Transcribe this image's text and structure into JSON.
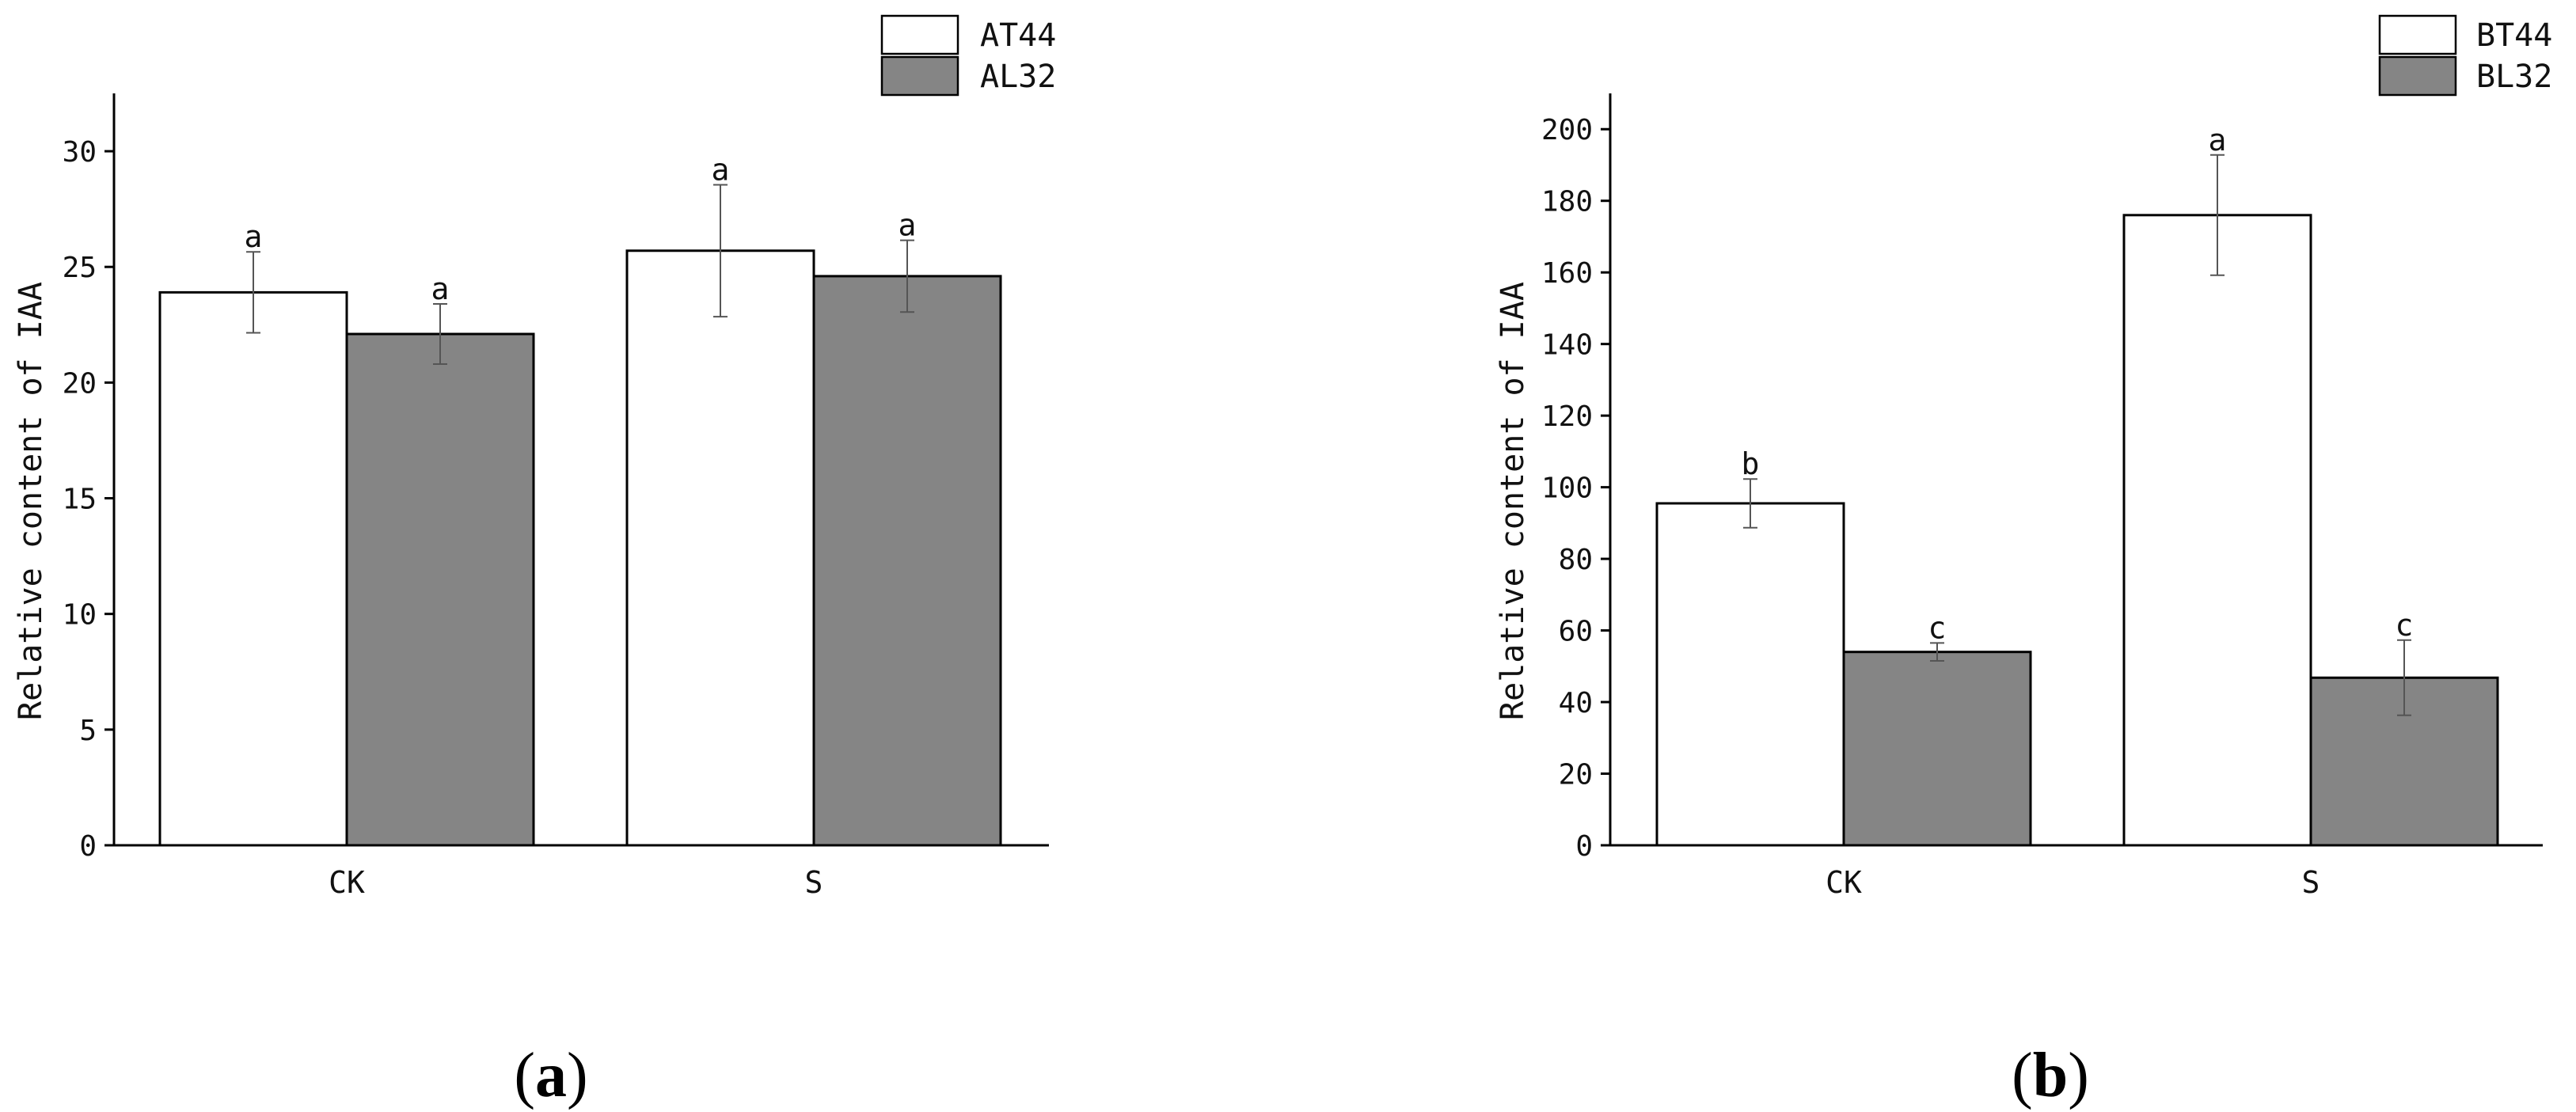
{
  "colors": {
    "series1": "#ffffff",
    "series2": "#858585",
    "axis": "#000000",
    "errorbar": "#555555"
  },
  "chart_data": [
    {
      "type": "bar",
      "panel_label": "a",
      "ylabel": "Relative content of IAA",
      "ylim": [
        0,
        32.5
      ],
      "yticks": [
        0,
        5,
        10,
        15,
        20,
        25,
        30
      ],
      "categories": [
        "CK",
        "S"
      ],
      "legend_position": "top-right",
      "series": [
        {
          "name": "AT44",
          "values": [
            23.9,
            25.7
          ],
          "errors": [
            1.75,
            2.85
          ],
          "significance": [
            "a",
            "a"
          ]
        },
        {
          "name": "AL32",
          "values": [
            22.1,
            24.6
          ],
          "errors": [
            1.3,
            1.55
          ],
          "significance": [
            "a",
            "a"
          ]
        }
      ]
    },
    {
      "type": "bar",
      "panel_label": "b",
      "ylabel": "Relative content of IAA",
      "ylim": [
        0,
        210
      ],
      "yticks": [
        0,
        20,
        40,
        60,
        80,
        100,
        120,
        140,
        160,
        180,
        200
      ],
      "categories": [
        "CK",
        "S"
      ],
      "legend_position": "top-right",
      "series": [
        {
          "name": "BT44",
          "values": [
            95.5,
            176
          ],
          "errors": [
            6.8,
            16.8
          ],
          "significance": [
            "b",
            "a"
          ]
        },
        {
          "name": "BL32",
          "values": [
            54,
            46.8
          ],
          "errors": [
            2.5,
            10.5
          ],
          "significance": [
            "c",
            "c"
          ]
        }
      ]
    }
  ]
}
